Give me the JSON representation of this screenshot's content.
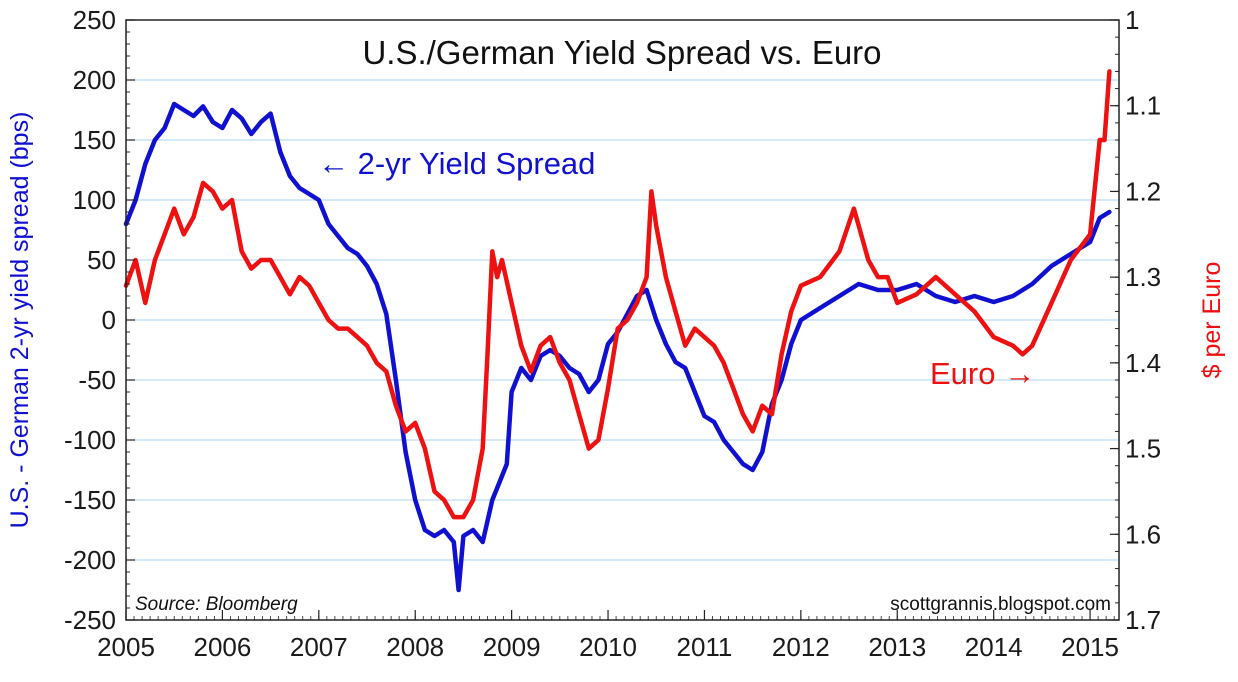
{
  "chart_data": {
    "type": "line",
    "title": "U.S./German Yield Spread vs. Euro",
    "ylabel_left": "U.S. - German 2-yr yield spread (bps)",
    "ylabel_right": "$ per Euro",
    "ylim_left": [
      -250,
      250
    ],
    "ylim_right": [
      1.7,
      1.0
    ],
    "xlim": [
      2005.0,
      2015.3
    ],
    "yticks_left": [
      "250",
      "200",
      "150",
      "100",
      "50",
      "0",
      "-50",
      "-100",
      "-150",
      "-200",
      "-250"
    ],
    "yticks_right": [
      "1",
      "1.1",
      "1.2",
      "1.3",
      "1.4",
      "1.5",
      "1.6",
      "1.7"
    ],
    "xticks": [
      "2005",
      "2006",
      "2007",
      "2008",
      "2009",
      "2010",
      "2011",
      "2012",
      "2013",
      "2014",
      "2015"
    ],
    "grid": true,
    "colors": {
      "spread": "#1010d0",
      "euro": "#ee1111",
      "grid": "#a8d4f0"
    },
    "annotations": {
      "spread_label": "← 2-yr Yield Spread",
      "euro_label": "Euro →",
      "source": "Source: Bloomberg",
      "credit": "scottgrannis.blogspot.com"
    },
    "series": [
      {
        "name": "2-yr Yield Spread",
        "axis": "left",
        "x": [
          2005.0,
          2005.1,
          2005.2,
          2005.3,
          2005.4,
          2005.5,
          2005.6,
          2005.7,
          2005.8,
          2005.9,
          2006.0,
          2006.1,
          2006.2,
          2006.3,
          2006.4,
          2006.5,
          2006.6,
          2006.7,
          2006.8,
          2006.9,
          2007.0,
          2007.1,
          2007.2,
          2007.3,
          2007.4,
          2007.5,
          2007.6,
          2007.7,
          2007.8,
          2007.9,
          2008.0,
          2008.1,
          2008.2,
          2008.3,
          2008.4,
          2008.45,
          2008.5,
          2008.6,
          2008.7,
          2008.8,
          2008.9,
          2008.95,
          2009.0,
          2009.1,
          2009.2,
          2009.3,
          2009.4,
          2009.5,
          2009.6,
          2009.7,
          2009.8,
          2009.9,
          2010.0,
          2010.1,
          2010.2,
          2010.3,
          2010.4,
          2010.5,
          2010.6,
          2010.7,
          2010.8,
          2010.9,
          2011.0,
          2011.1,
          2011.2,
          2011.3,
          2011.4,
          2011.5,
          2011.6,
          2011.7,
          2011.8,
          2011.9,
          2012.0,
          2012.2,
          2012.4,
          2012.6,
          2012.8,
          2013.0,
          2013.2,
          2013.4,
          2013.6,
          2013.8,
          2014.0,
          2014.2,
          2014.4,
          2014.6,
          2014.8,
          2015.0,
          2015.1,
          2015.2
        ],
        "values": [
          80,
          100,
          130,
          150,
          160,
          180,
          175,
          170,
          178,
          165,
          160,
          175,
          168,
          155,
          165,
          172,
          140,
          120,
          110,
          105,
          100,
          80,
          70,
          60,
          55,
          45,
          30,
          5,
          -50,
          -110,
          -150,
          -175,
          -180,
          -175,
          -185,
          -225,
          -180,
          -175,
          -185,
          -150,
          -130,
          -120,
          -60,
          -40,
          -50,
          -30,
          -25,
          -30,
          -40,
          -45,
          -60,
          -50,
          -20,
          -10,
          5,
          20,
          25,
          0,
          -20,
          -35,
          -40,
          -60,
          -80,
          -85,
          -100,
          -110,
          -120,
          -125,
          -110,
          -70,
          -50,
          -20,
          0,
          10,
          20,
          30,
          25,
          25,
          30,
          20,
          15,
          20,
          15,
          20,
          30,
          45,
          55,
          65,
          85,
          90
        ]
      },
      {
        "name": "Euro",
        "axis": "right",
        "x": [
          2005.0,
          2005.1,
          2005.2,
          2005.3,
          2005.4,
          2005.5,
          2005.6,
          2005.7,
          2005.8,
          2005.9,
          2006.0,
          2006.1,
          2006.2,
          2006.3,
          2006.4,
          2006.5,
          2006.6,
          2006.7,
          2006.8,
          2006.9,
          2007.0,
          2007.1,
          2007.2,
          2007.3,
          2007.4,
          2007.5,
          2007.6,
          2007.7,
          2007.8,
          2007.9,
          2008.0,
          2008.1,
          2008.2,
          2008.3,
          2008.4,
          2008.5,
          2008.6,
          2008.7,
          2008.75,
          2008.8,
          2008.85,
          2008.9,
          2009.0,
          2009.1,
          2009.2,
          2009.3,
          2009.4,
          2009.5,
          2009.6,
          2009.7,
          2009.8,
          2009.9,
          2010.0,
          2010.1,
          2010.2,
          2010.3,
          2010.4,
          2010.45,
          2010.5,
          2010.6,
          2010.7,
          2010.8,
          2010.9,
          2011.0,
          2011.1,
          2011.2,
          2011.3,
          2011.4,
          2011.5,
          2011.6,
          2011.7,
          2011.8,
          2011.9,
          2012.0,
          2012.2,
          2012.4,
          2012.55,
          2012.6,
          2012.7,
          2012.8,
          2012.9,
          2013.0,
          2013.2,
          2013.4,
          2013.6,
          2013.8,
          2014.0,
          2014.2,
          2014.3,
          2014.4,
          2014.6,
          2014.8,
          2015.0,
          2015.1,
          2015.15,
          2015.2
        ],
        "values": [
          1.31,
          1.28,
          1.33,
          1.28,
          1.25,
          1.22,
          1.25,
          1.23,
          1.19,
          1.2,
          1.22,
          1.21,
          1.27,
          1.29,
          1.28,
          1.28,
          1.3,
          1.32,
          1.3,
          1.31,
          1.33,
          1.35,
          1.36,
          1.36,
          1.37,
          1.38,
          1.4,
          1.41,
          1.45,
          1.48,
          1.47,
          1.5,
          1.55,
          1.56,
          1.58,
          1.58,
          1.56,
          1.5,
          1.39,
          1.27,
          1.3,
          1.28,
          1.33,
          1.38,
          1.41,
          1.38,
          1.37,
          1.4,
          1.42,
          1.46,
          1.5,
          1.49,
          1.43,
          1.36,
          1.35,
          1.33,
          1.3,
          1.2,
          1.24,
          1.3,
          1.34,
          1.38,
          1.36,
          1.37,
          1.38,
          1.4,
          1.43,
          1.46,
          1.48,
          1.45,
          1.46,
          1.39,
          1.34,
          1.31,
          1.3,
          1.27,
          1.22,
          1.24,
          1.28,
          1.3,
          1.3,
          1.33,
          1.32,
          1.3,
          1.32,
          1.34,
          1.37,
          1.38,
          1.39,
          1.38,
          1.33,
          1.28,
          1.25,
          1.14,
          1.14,
          1.06
        ]
      }
    ]
  }
}
